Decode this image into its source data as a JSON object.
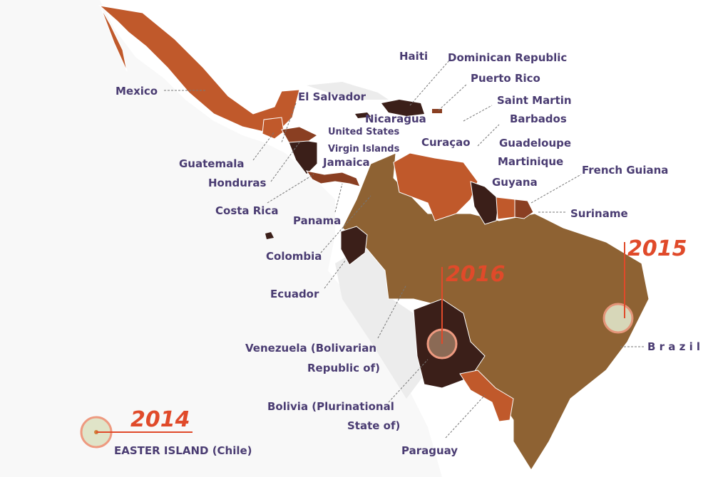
{
  "colors": {
    "orange": "#c0592b",
    "dark": "#3b1f19",
    "tan": "#8e6233",
    "brown": "#8a3f22",
    "label": "#4a3c72",
    "year": "#e04a2a",
    "land": "#ececec"
  },
  "labels": {
    "mexico": "Mexico",
    "el_salvador": "El Salvador",
    "guatemala": "Guatemala",
    "honduras": "Honduras",
    "costa_rica": "Costa Rica",
    "panama": "Panama",
    "colombia": "Colombia",
    "ecuador": "Ecuador",
    "venezuela_1": "Venezuela (Bolivarian",
    "venezuela_2": "Republic of)",
    "bolivia_1": "Bolivia (Plurinational",
    "bolivia_2": "State of)",
    "paraguay": "Paraguay",
    "haiti": "Haiti",
    "dominican_republic": "Dominican Republic",
    "puerto_rico": "Puerto Rico",
    "saint_martin": "Saint Martin",
    "barbados": "Barbados",
    "nicaragua": "Nicaragua",
    "usvi_1": "United States",
    "usvi_2": "Virgin Islands",
    "jamaica": "Jamaica",
    "curacao": "Curaçao",
    "guadeloupe": "Guadeloupe",
    "martinique": "Martinique",
    "french_guiana": "French Guiana",
    "guyana": "Guyana",
    "suriname": "Suriname",
    "brazil": "B r a z i l",
    "easter_island": "EASTER ISLAND (Chile)"
  },
  "years": {
    "y2014": "2014",
    "y2015": "2015",
    "y2016": "2016"
  }
}
